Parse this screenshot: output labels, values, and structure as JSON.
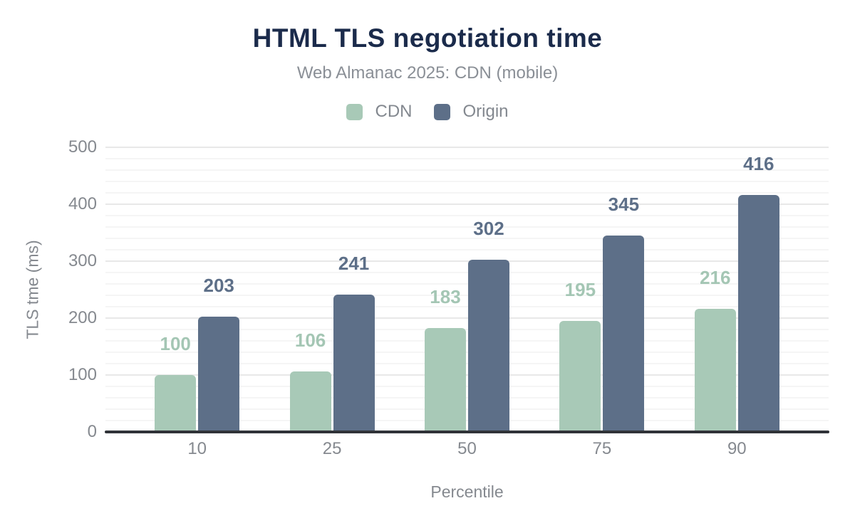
{
  "chart": {
    "title": "HTML TLS negotiation time",
    "subtitle": "Web Almanac 2025: CDN (mobile)"
  },
  "chart_data": {
    "type": "bar",
    "title": "HTML TLS negotiation time",
    "subtitle": "Web Almanac 2025: CDN (mobile)",
    "categories": [
      "10",
      "25",
      "50",
      "75",
      "90"
    ],
    "series": [
      {
        "name": "CDN",
        "color": "#a8c9b7",
        "label_color": "#a4c6b4",
        "values": [
          100,
          106,
          183,
          195,
          216
        ]
      },
      {
        "name": "Origin",
        "color": "#5d6f88",
        "label_color": "#5d6f88",
        "values": [
          203,
          241,
          302,
          345,
          416
        ]
      }
    ],
    "xlabel": "Percentile",
    "ylabel": "TLS tme (ms)",
    "ylim": [
      0,
      500
    ],
    "y_major_step": 100,
    "y_minor_step": 20,
    "y_tick_labels": [
      "0",
      "100",
      "200",
      "300",
      "400",
      "500"
    ],
    "grid": true,
    "legend_position": "top",
    "data_labels": true
  },
  "colors": {
    "background": "#ffffff",
    "title": "#1b2b4b",
    "subtitle": "#8a8f96",
    "axis_text": "#85898f",
    "axis_line": "#303338",
    "grid_major": "#e8e8e8",
    "grid_minor": "#f5f5f5",
    "cdn": "#a8c9b7",
    "origin": "#5d6f88"
  }
}
